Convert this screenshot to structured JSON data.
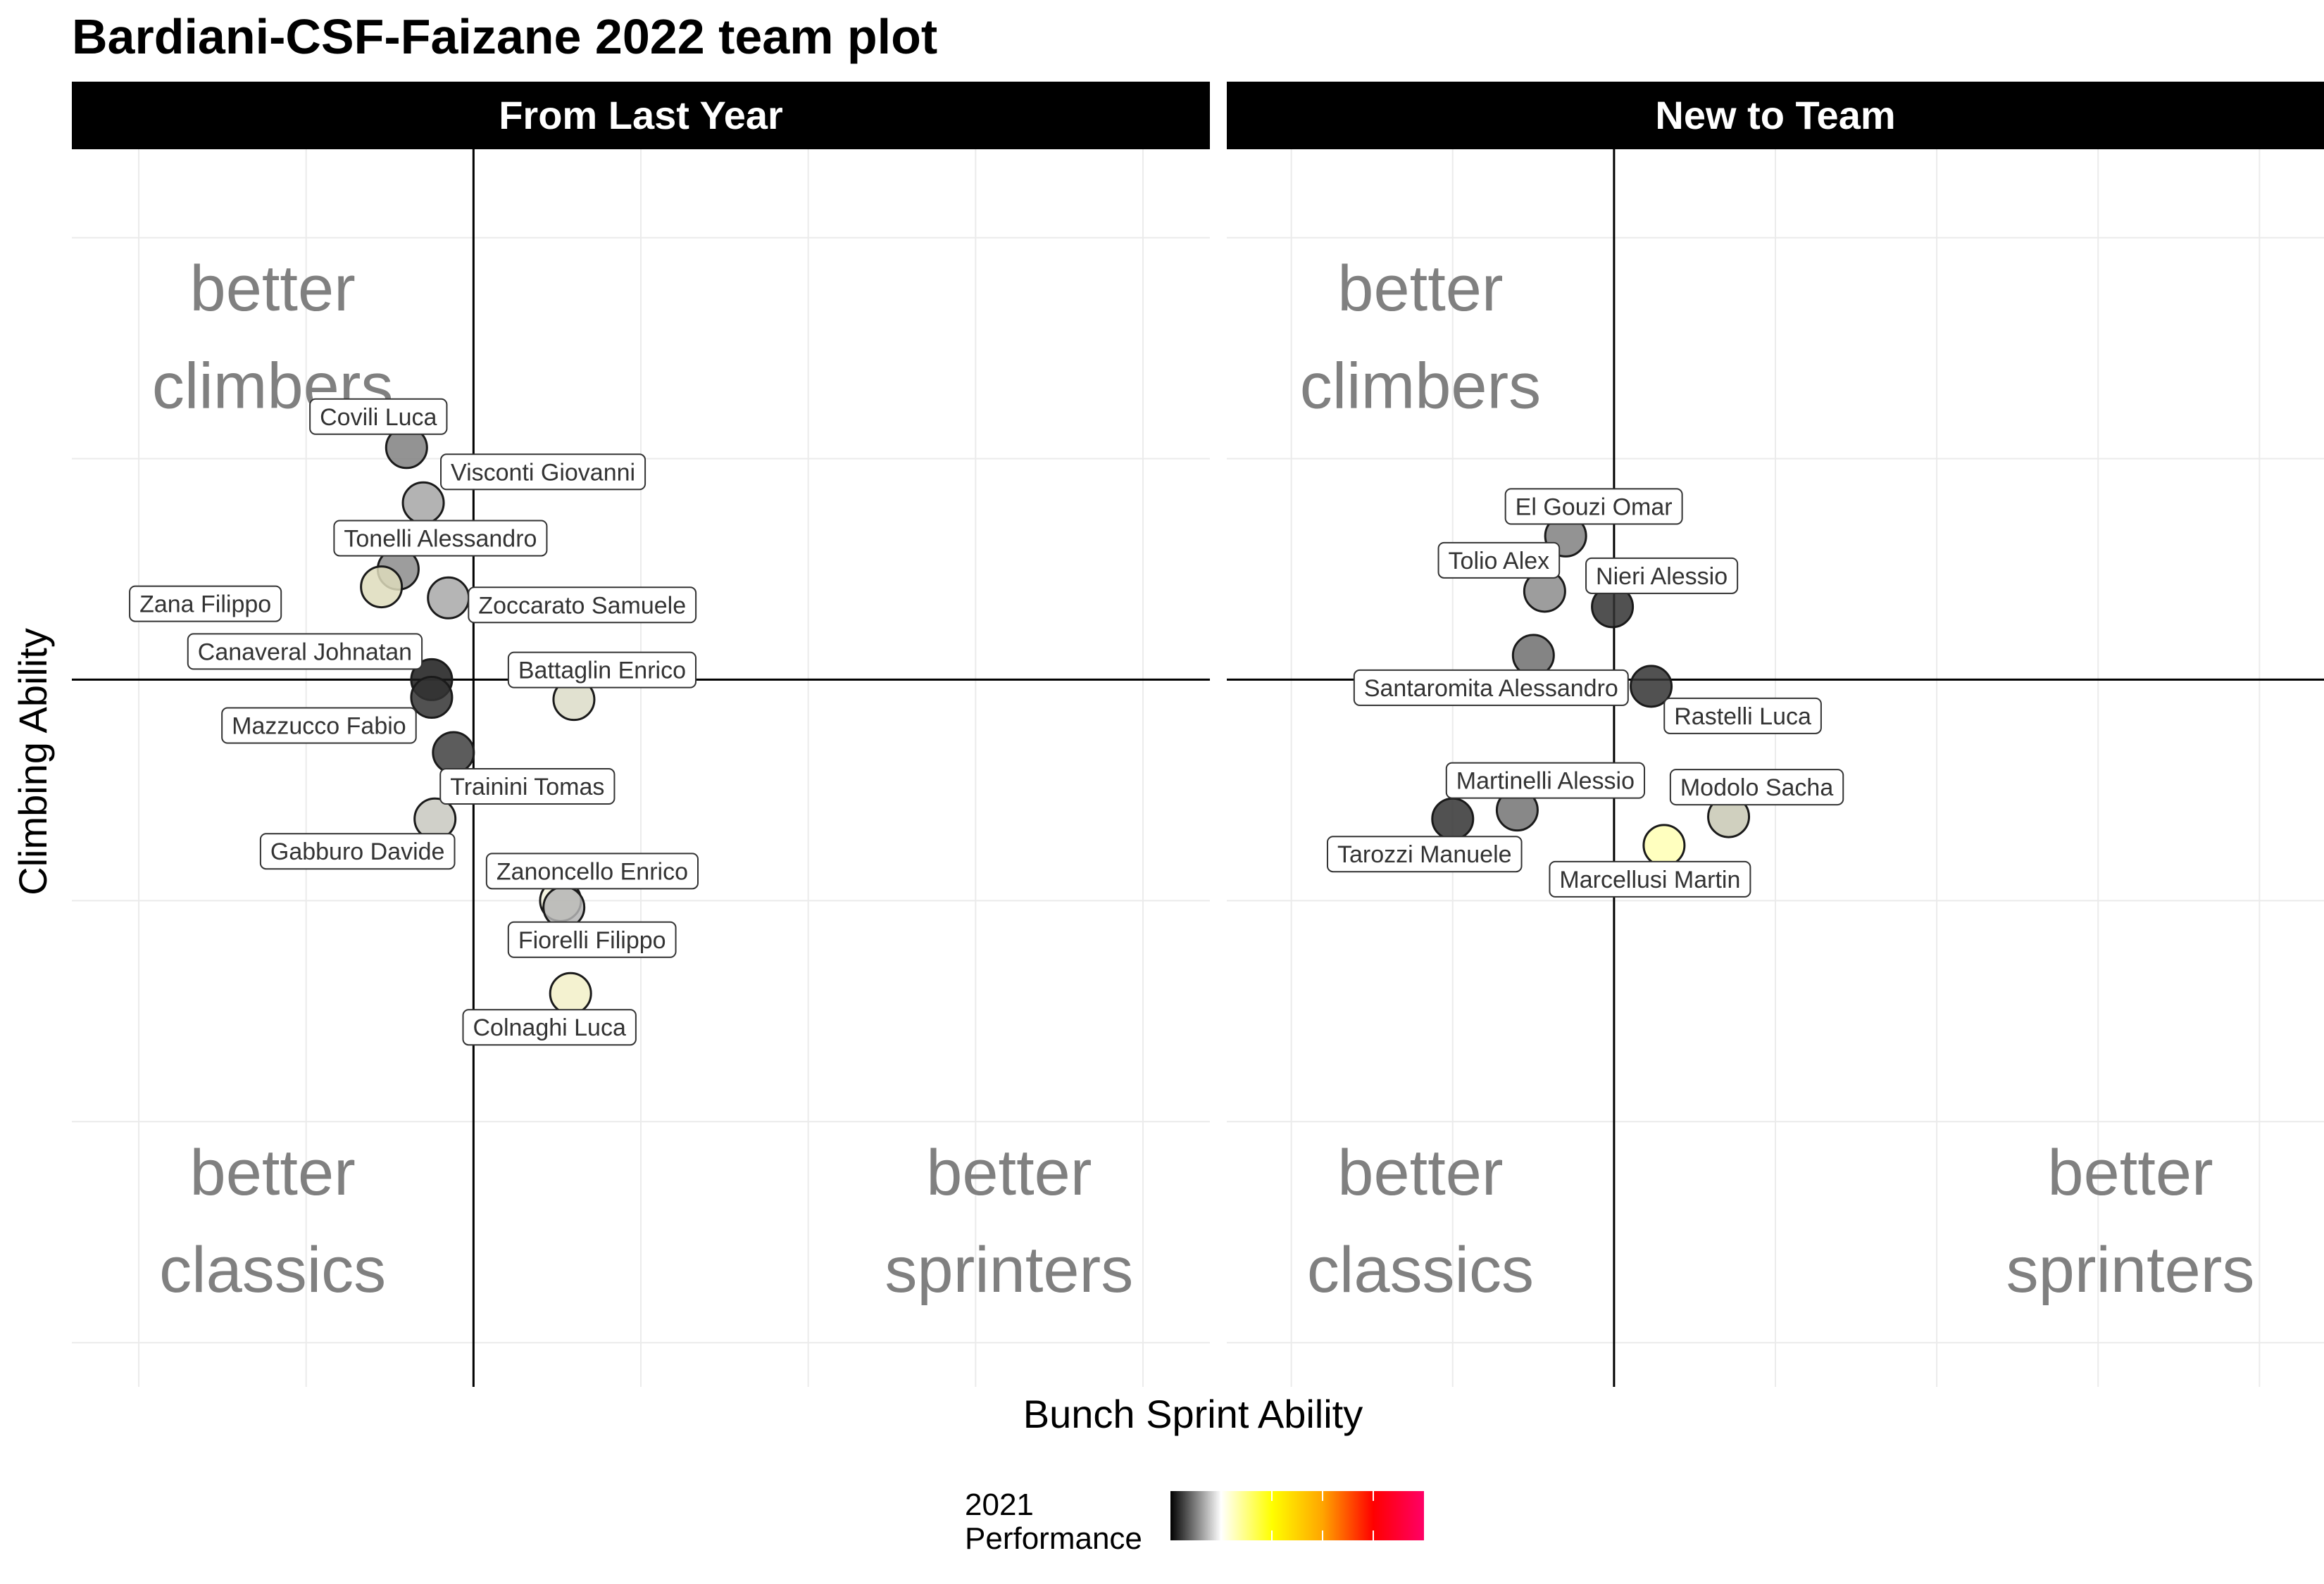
{
  "chart_data": {
    "type": "scatter",
    "title": "Bardiani-CSF-Faizane 2022 team plot",
    "xlabel": "Bunch Sprint Ability",
    "ylabel": "Climbing Ability",
    "xlim": [
      -2.4,
      4.4
    ],
    "ylim": [
      -3.2,
      2.4
    ],
    "grid": true,
    "legend": {
      "title_line1": "2021",
      "title_line2": "Performance",
      "position": "bottom",
      "gradient": [
        "#000000",
        "#ffffff",
        "#ffff00",
        "#ffa500",
        "#ff0000",
        "#ff0066"
      ]
    },
    "panels": [
      {
        "title": "From Last Year",
        "quadrants": {
          "top_left": [
            "better",
            "climbers"
          ],
          "bottom_left": [
            "better",
            "classics"
          ],
          "bottom_right": [
            "better",
            "sprinters"
          ]
        },
        "points": [
          {
            "name": "Covili Luca",
            "x": -0.4,
            "y": 1.05,
            "color": "#808080"
          },
          {
            "name": "Visconti Giovanni",
            "x": -0.3,
            "y": 0.8,
            "color": "#a6a6a6"
          },
          {
            "name": "Tonelli Alessandro",
            "x": -0.45,
            "y": 0.5,
            "color": "#8c8c8c"
          },
          {
            "name": "Zana Filippo",
            "x": -0.55,
            "y": 0.42,
            "color": "#dedcbc"
          },
          {
            "name": "Zoccarato Samuele",
            "x": -0.15,
            "y": 0.37,
            "color": "#a8a8a8"
          },
          {
            "name": "Canaveral Johnatan",
            "x": -0.25,
            "y": 0.0,
            "color": "#1a1a1a"
          },
          {
            "name": "Battaglin Enrico",
            "x": 0.6,
            "y": -0.09,
            "color": "#dcdcc8"
          },
          {
            "name": "Mazzucco Fabio",
            "x": -0.25,
            "y": -0.08,
            "color": "#333333"
          },
          {
            "name": "Trainini Tomas",
            "x": -0.12,
            "y": -0.33,
            "color": "#404040"
          },
          {
            "name": "Gabburo Davide",
            "x": -0.23,
            "y": -0.63,
            "color": "#c8c8c0"
          },
          {
            "name": "Zanoncello Enrico",
            "x": 0.52,
            "y": -1.0,
            "color": "#f2f2dc"
          },
          {
            "name": "Fiorelli Filippo",
            "x": 0.54,
            "y": -1.03,
            "color": "#b4b4b4"
          },
          {
            "name": "Colnaghi Luca",
            "x": 0.58,
            "y": -1.42,
            "color": "#f2f0c8"
          }
        ]
      },
      {
        "title": "New to Team",
        "quadrants": {
          "top_left": [
            "better",
            "climbers"
          ],
          "bottom_left": [
            "better",
            "classics"
          ],
          "bottom_right": [
            "better",
            "sprinters"
          ]
        },
        "points": [
          {
            "name": "El Gouzi Omar",
            "x": -0.3,
            "y": 0.65,
            "color": "#808080"
          },
          {
            "name": "Nieri Alessio",
            "x": -0.01,
            "y": 0.33,
            "color": "#333333"
          },
          {
            "name": "Tolio Alex",
            "x": -0.43,
            "y": 0.4,
            "color": "#8c8c8c"
          },
          {
            "name": "Santaromita Alessandro",
            "x": -0.5,
            "y": 0.11,
            "color": "#6e6e6e"
          },
          {
            "name": "Rastelli Luca",
            "x": 0.23,
            "y": -0.03,
            "color": "#333333"
          },
          {
            "name": "Martinelli Alessio",
            "x": -0.6,
            "y": -0.59,
            "color": "#737373"
          },
          {
            "name": "Tarozzi Manuele",
            "x": -1.0,
            "y": -0.63,
            "color": "#333333"
          },
          {
            "name": "Modolo Sacha",
            "x": 0.71,
            "y": -0.62,
            "color": "#c8c8b4"
          },
          {
            "name": "Marcellusi Martin",
            "x": 0.31,
            "y": -0.75,
            "color": "#ffffb4"
          }
        ]
      }
    ]
  }
}
